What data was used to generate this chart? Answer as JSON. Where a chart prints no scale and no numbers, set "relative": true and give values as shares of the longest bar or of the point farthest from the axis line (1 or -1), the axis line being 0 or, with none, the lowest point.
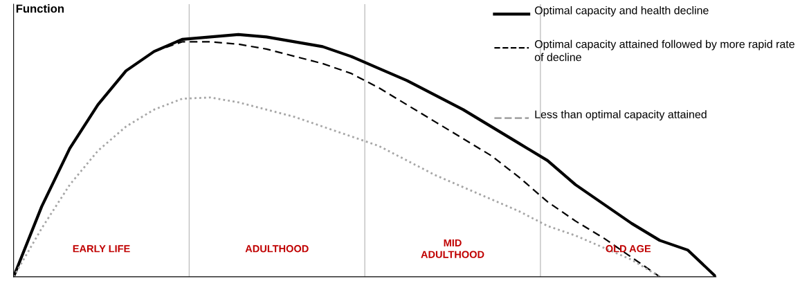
{
  "chart_data": {
    "type": "line",
    "relative": true,
    "ylabel": "Function",
    "legend": "top right",
    "categories": [
      null,
      null,
      null,
      null,
      null,
      null,
      null,
      null,
      null,
      null,
      null,
      null,
      null,
      null,
      null,
      null,
      null,
      null,
      null,
      null,
      null,
      null,
      null,
      null,
      null,
      null
    ],
    "series": [
      {
        "name": "Optimal capacity and health decline",
        "color": "#000000",
        "line_style": "solid",
        "values": [
          0,
          0.29,
          0.53,
          0.71,
          0.85,
          0.93,
          0.98,
          0.99,
          1,
          0.99,
          0.97,
          0.95,
          0.91,
          0.86,
          0.81,
          0.75,
          0.69,
          0.62,
          0.55,
          0.48,
          0.38,
          0.3,
          0.22,
          0.15,
          0.11,
          0
        ]
      },
      {
        "name": "Optimal capacity attained followed by more rapid rate of decline",
        "color": "#000000",
        "line_style": "dashed",
        "values": [
          0,
          0.29,
          0.53,
          0.71,
          0.85,
          0.93,
          0.97,
          0.97,
          0.96,
          0.94,
          0.91,
          0.88,
          0.84,
          0.78,
          0.71,
          0.64,
          0.57,
          0.5,
          0.41,
          0.31,
          0.23,
          0.16,
          0.08,
          0,
          null,
          null
        ]
      },
      {
        "name": "Less than optimal capacity attained",
        "color": "#a6a6a6",
        "line_style": "dotted",
        "values": [
          0,
          0.2,
          0.38,
          0.52,
          0.62,
          0.69,
          0.735,
          0.74,
          0.72,
          0.69,
          0.66,
          0.62,
          0.58,
          0.54,
          0.48,
          0.42,
          0.37,
          0.32,
          0.27,
          0.21,
          0.17,
          0.12,
          0.07,
          0,
          null,
          null
        ]
      }
    ],
    "annotations": [
      "EARLY LIFE",
      "ADULTHOOD",
      "MID\nADULTHOOD",
      "OLD AGE"
    ]
  }
}
